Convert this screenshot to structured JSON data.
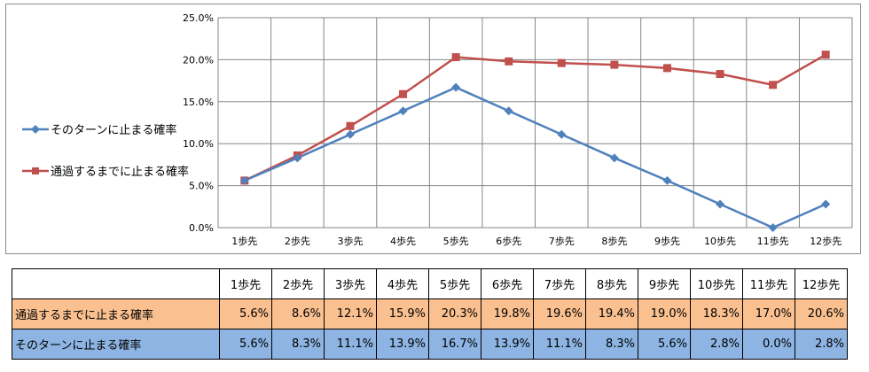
{
  "chart_data": {
    "type": "line",
    "categories": [
      "1歩先",
      "2歩先",
      "3歩先",
      "4歩先",
      "5歩先",
      "6歩先",
      "7歩先",
      "8歩先",
      "9歩先",
      "10歩先",
      "11歩先",
      "12歩先"
    ],
    "y_ticks": [
      "0.0%",
      "5.0%",
      "10.0%",
      "15.0%",
      "20.0%",
      "25.0%"
    ],
    "ylim": [
      0,
      25
    ],
    "grid": true,
    "legend_position": "left",
    "series": [
      {
        "name": "そのターンに止まる確率",
        "color": "#4f81bd",
        "marker": "diamond",
        "values": [
          5.6,
          8.3,
          11.1,
          13.9,
          16.7,
          13.9,
          11.1,
          8.3,
          5.6,
          2.8,
          0.0,
          2.8
        ]
      },
      {
        "name": "通過するまでに止まる確率",
        "color": "#c0504d",
        "marker": "square",
        "values": [
          5.6,
          8.6,
          12.1,
          15.9,
          20.3,
          19.8,
          19.6,
          19.4,
          19.0,
          18.3,
          17.0,
          20.6
        ]
      }
    ]
  },
  "table": {
    "header": [
      "",
      "1歩先",
      "2歩先",
      "3歩先",
      "4歩先",
      "5歩先",
      "6歩先",
      "7歩先",
      "8歩先",
      "9歩先",
      "10歩先",
      "11歩先",
      "12歩先"
    ],
    "rows": [
      {
        "label": "通過するまでに止まる確率",
        "cells": [
          "5.6%",
          "8.6%",
          "12.1%",
          "15.9%",
          "20.3%",
          "19.8%",
          "19.6%",
          "19.4%",
          "19.0%",
          "18.3%",
          "17.0%",
          "20.6%"
        ]
      },
      {
        "label": "そのターンに止まる確率",
        "cells": [
          "5.6%",
          "8.3%",
          "11.1%",
          "13.9%",
          "16.7%",
          "13.9%",
          "11.1%",
          "8.3%",
          "5.6%",
          "2.8%",
          "0.0%",
          "2.8%"
        ]
      }
    ]
  }
}
